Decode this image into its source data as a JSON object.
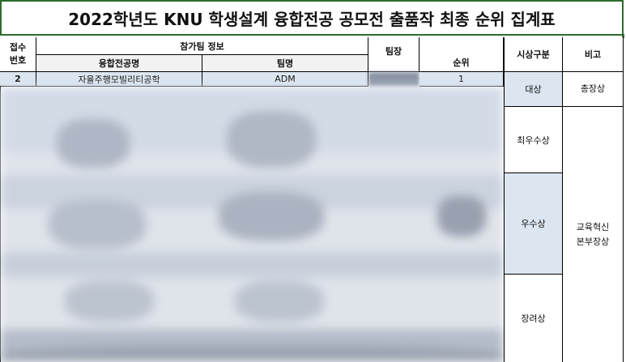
{
  "title": "2022학년도 KNU 학생설계 융합전공 공모전 출품작 최종 순위 집계표",
  "headers": {
    "receipt": "접수\n번호",
    "receipt_line1": "접수",
    "receipt_line2": "번호",
    "team_info": "참가팀 정보",
    "major_name": "융합전공명",
    "team_name": "팀명",
    "leader": "팀장",
    "rank": "순위",
    "award_category": "시상구분",
    "remarks": "비고"
  },
  "rows": [
    {
      "receipt_no": "2",
      "major_name": "자율주행모빌리티공학",
      "team_name": "ADM",
      "rank": "1"
    }
  ],
  "awards": [
    {
      "category": "대상",
      "remark": "총장상"
    },
    {
      "category": "최우수상"
    },
    {
      "category": "우수상"
    },
    {
      "category": "장려상"
    }
  ],
  "shared_remark_line1": "교육혁신",
  "shared_remark_line2": "본부장상",
  "colors": {
    "title_border": "#2e6b2e",
    "highlight_row": "#dce6f1",
    "grand_prize_bg": "#dce6f1",
    "excellence_bg": "#dce6f1"
  }
}
